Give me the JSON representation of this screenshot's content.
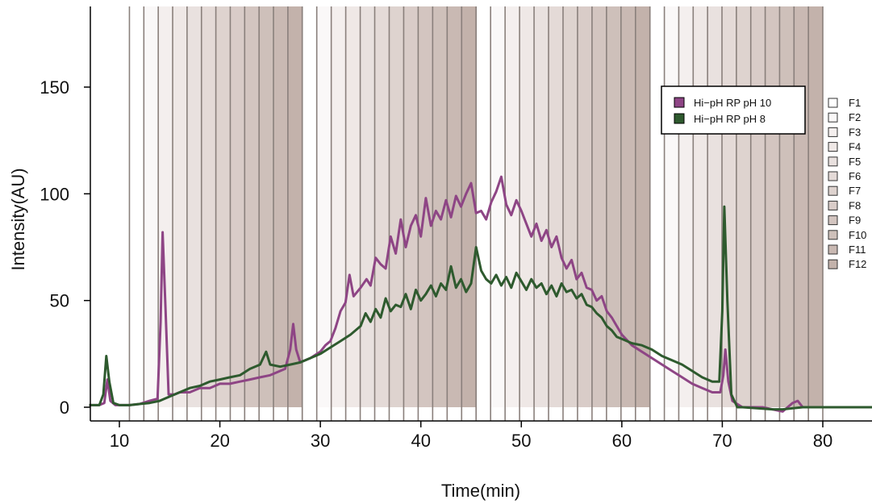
{
  "chart_data": {
    "type": "line",
    "title": "",
    "xlabel": "Time(min)",
    "ylabel": "Intensity(AU)",
    "xlim": [
      7,
      85
    ],
    "ylim": [
      -8,
      188
    ],
    "xticks": [
      10,
      20,
      30,
      40,
      50,
      60,
      70,
      80
    ],
    "yticks": [
      0,
      50,
      100,
      150
    ],
    "grid": false,
    "legend_position": "top-right",
    "series": [
      {
        "name": "Hi−pH RP pH 10",
        "color": "#8e4585",
        "points": [
          [
            7,
            1
          ],
          [
            8,
            1
          ],
          [
            8.5,
            2
          ],
          [
            8.8,
            13
          ],
          [
            9.1,
            3
          ],
          [
            9.6,
            1
          ],
          [
            10,
            1
          ],
          [
            11,
            1
          ],
          [
            12,
            1.5
          ],
          [
            13,
            3
          ],
          [
            13.8,
            4
          ],
          [
            14.1,
            40
          ],
          [
            14.3,
            82
          ],
          [
            14.6,
            45
          ],
          [
            14.9,
            6
          ],
          [
            15.5,
            6
          ],
          [
            16,
            7
          ],
          [
            17,
            7
          ],
          [
            18,
            9
          ],
          [
            19,
            9
          ],
          [
            20,
            11
          ],
          [
            21,
            11
          ],
          [
            22,
            12
          ],
          [
            23,
            13
          ],
          [
            24,
            14
          ],
          [
            25,
            15
          ],
          [
            26,
            17
          ],
          [
            26.5,
            18
          ],
          [
            27,
            27
          ],
          [
            27.3,
            39
          ],
          [
            27.6,
            27
          ],
          [
            28,
            21
          ],
          [
            29,
            23
          ],
          [
            30,
            26
          ],
          [
            30.5,
            29
          ],
          [
            31,
            31
          ],
          [
            31.5,
            37
          ],
          [
            32,
            45
          ],
          [
            32.5,
            49
          ],
          [
            32.9,
            62
          ],
          [
            33.3,
            52
          ],
          [
            34,
            56
          ],
          [
            34.6,
            60
          ],
          [
            35,
            57
          ],
          [
            35.5,
            70
          ],
          [
            36,
            67
          ],
          [
            36.5,
            65
          ],
          [
            37,
            80
          ],
          [
            37.5,
            72
          ],
          [
            38,
            88
          ],
          [
            38.5,
            75
          ],
          [
            39,
            85
          ],
          [
            39.5,
            90
          ],
          [
            40,
            80
          ],
          [
            40.5,
            98
          ],
          [
            41,
            85
          ],
          [
            41.5,
            92
          ],
          [
            42,
            88
          ],
          [
            42.5,
            97
          ],
          [
            43,
            89
          ],
          [
            43.5,
            99
          ],
          [
            44,
            94
          ],
          [
            44.5,
            100
          ],
          [
            45,
            105
          ],
          [
            45.5,
            91
          ],
          [
            46,
            92
          ],
          [
            46.5,
            88
          ],
          [
            47,
            96
          ],
          [
            47.5,
            101
          ],
          [
            48,
            108
          ],
          [
            48.5,
            95
          ],
          [
            49,
            90
          ],
          [
            49.5,
            97
          ],
          [
            50,
            92
          ],
          [
            50.5,
            86
          ],
          [
            51,
            80
          ],
          [
            51.5,
            86
          ],
          [
            52,
            78
          ],
          [
            52.5,
            83
          ],
          [
            53,
            75
          ],
          [
            53.5,
            80
          ],
          [
            54,
            70
          ],
          [
            54.5,
            65
          ],
          [
            55,
            69
          ],
          [
            55.5,
            60
          ],
          [
            56,
            63
          ],
          [
            56.5,
            56
          ],
          [
            57,
            55
          ],
          [
            57.5,
            50
          ],
          [
            58,
            52
          ],
          [
            58.5,
            45
          ],
          [
            59,
            42
          ],
          [
            59.5,
            38
          ],
          [
            60,
            34
          ],
          [
            61,
            29
          ],
          [
            62,
            26
          ],
          [
            63,
            23
          ],
          [
            64,
            20
          ],
          [
            65,
            17
          ],
          [
            66,
            14
          ],
          [
            67,
            11
          ],
          [
            68,
            9
          ],
          [
            69,
            7
          ],
          [
            69.8,
            7
          ],
          [
            70.1,
            15
          ],
          [
            70.3,
            27
          ],
          [
            70.6,
            12
          ],
          [
            71,
            3
          ],
          [
            72,
            0
          ],
          [
            73,
            0
          ],
          [
            74,
            0
          ],
          [
            75,
            -1
          ],
          [
            76,
            -2
          ],
          [
            76.5,
            0
          ],
          [
            77,
            2
          ],
          [
            77.5,
            3
          ],
          [
            78,
            0
          ],
          [
            80,
            0
          ],
          [
            82,
            0
          ],
          [
            85,
            0
          ]
        ]
      },
      {
        "name": "Hi−pH RP pH 8",
        "color": "#2e5a2e",
        "points": [
          [
            7,
            1
          ],
          [
            8,
            1
          ],
          [
            8.4,
            6
          ],
          [
            8.7,
            24
          ],
          [
            9,
            12
          ],
          [
            9.4,
            2
          ],
          [
            10,
            1
          ],
          [
            11,
            1
          ],
          [
            12,
            1.5
          ],
          [
            13,
            2
          ],
          [
            14,
            3
          ],
          [
            15,
            5
          ],
          [
            16,
            7
          ],
          [
            17,
            9
          ],
          [
            18,
            10
          ],
          [
            19,
            12
          ],
          [
            20,
            13
          ],
          [
            21,
            14
          ],
          [
            22,
            15
          ],
          [
            23,
            18
          ],
          [
            24,
            20
          ],
          [
            24.6,
            26
          ],
          [
            25,
            20
          ],
          [
            26,
            19
          ],
          [
            27,
            20
          ],
          [
            28,
            21
          ],
          [
            29,
            23
          ],
          [
            30,
            25
          ],
          [
            31,
            28
          ],
          [
            32,
            31
          ],
          [
            33,
            34
          ],
          [
            34,
            38
          ],
          [
            34.5,
            44
          ],
          [
            35,
            40
          ],
          [
            35.5,
            46
          ],
          [
            36,
            42
          ],
          [
            36.5,
            51
          ],
          [
            37,
            45
          ],
          [
            37.5,
            48
          ],
          [
            38,
            47
          ],
          [
            38.5,
            53
          ],
          [
            39,
            46
          ],
          [
            39.5,
            55
          ],
          [
            40,
            50
          ],
          [
            40.5,
            53
          ],
          [
            41,
            57
          ],
          [
            41.5,
            52
          ],
          [
            42,
            58
          ],
          [
            42.5,
            55
          ],
          [
            43,
            66
          ],
          [
            43.5,
            56
          ],
          [
            44,
            60
          ],
          [
            44.5,
            54
          ],
          [
            45,
            58
          ],
          [
            45.5,
            75
          ],
          [
            46,
            64
          ],
          [
            46.5,
            60
          ],
          [
            47,
            58
          ],
          [
            47.5,
            62
          ],
          [
            48,
            57
          ],
          [
            48.5,
            61
          ],
          [
            49,
            56
          ],
          [
            49.5,
            63
          ],
          [
            50,
            59
          ],
          [
            50.5,
            55
          ],
          [
            51,
            60
          ],
          [
            51.5,
            56
          ],
          [
            52,
            58
          ],
          [
            52.5,
            53
          ],
          [
            53,
            57
          ],
          [
            53.5,
            52
          ],
          [
            54,
            58
          ],
          [
            54.5,
            54
          ],
          [
            55,
            55
          ],
          [
            55.5,
            51
          ],
          [
            56,
            53
          ],
          [
            56.5,
            48
          ],
          [
            57,
            47
          ],
          [
            57.5,
            44
          ],
          [
            58,
            42
          ],
          [
            58.5,
            38
          ],
          [
            59,
            36
          ],
          [
            59.5,
            33
          ],
          [
            60,
            32
          ],
          [
            61,
            30
          ],
          [
            62,
            29
          ],
          [
            63,
            27
          ],
          [
            64,
            24
          ],
          [
            65,
            22
          ],
          [
            66,
            20
          ],
          [
            67,
            17
          ],
          [
            68,
            14
          ],
          [
            69,
            12
          ],
          [
            69.7,
            12
          ],
          [
            70,
            45
          ],
          [
            70.2,
            94
          ],
          [
            70.5,
            50
          ],
          [
            70.9,
            6
          ],
          [
            71.5,
            0
          ],
          [
            72,
            0
          ],
          [
            75,
            -1
          ],
          [
            76,
            -1
          ],
          [
            78,
            0
          ],
          [
            80,
            0
          ],
          [
            82,
            0
          ],
          [
            85,
            0
          ]
        ]
      }
    ],
    "fractions": {
      "labels": [
        "F1",
        "F2",
        "F3",
        "F4",
        "F5",
        "F6",
        "F7",
        "F8",
        "F9",
        "F10",
        "F11",
        "F12"
      ],
      "colors": [
        "#ffffff",
        "#faf8f8",
        "#f4efee",
        "#efe8e6",
        "#e9e1df",
        "#e4dad7",
        "#ded3cf",
        "#d9ccc8",
        "#d3c5c0",
        "#cec0ba",
        "#c9b9b3",
        "#c3b2ab"
      ],
      "blocks": [
        {
          "start": 11.0,
          "end": 28.2,
          "shading": [
            0,
            1,
            2,
            3,
            4,
            5,
            6,
            7,
            8,
            9,
            10,
            11
          ]
        },
        {
          "start": 28.2,
          "end": 45.5,
          "shading": [
            0,
            1,
            2,
            3,
            4,
            5,
            6,
            7,
            8,
            9,
            10,
            11
          ]
        },
        {
          "start": 45.5,
          "end": 62.8,
          "shading": [
            0,
            1,
            2,
            3,
            4,
            5,
            6,
            7,
            8,
            9,
            10,
            11
          ]
        },
        {
          "start": 62.8,
          "end": 80.0,
          "shading": [
            0,
            1,
            2,
            3,
            4,
            5,
            6,
            7,
            8,
            9,
            10,
            11
          ]
        }
      ]
    }
  }
}
